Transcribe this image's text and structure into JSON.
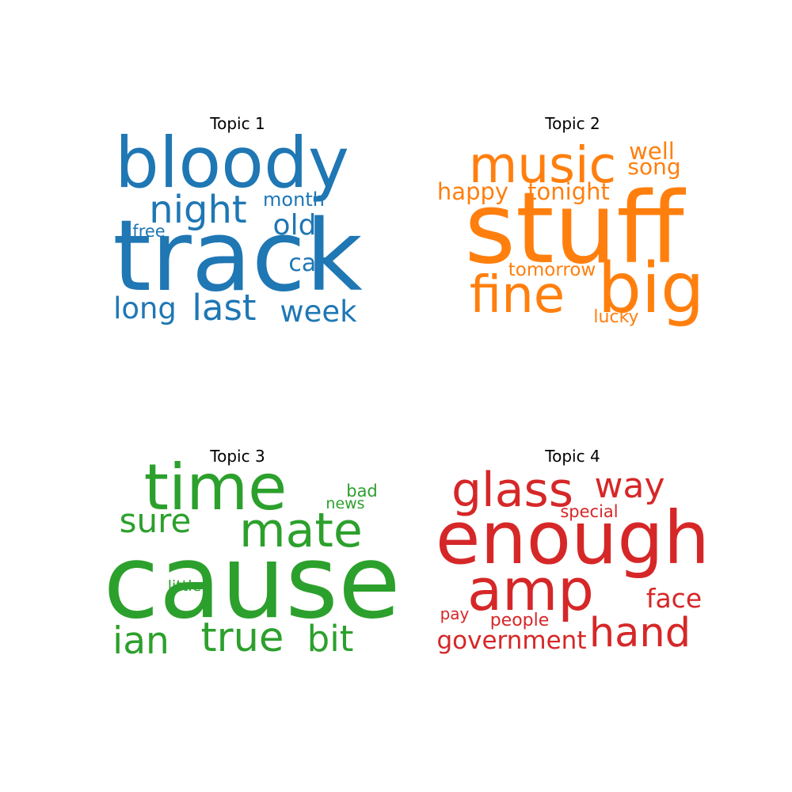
{
  "chart_data": {
    "type": "wordcloud",
    "panels": [
      {
        "title": "Topic 1",
        "color": "#1f77b4",
        "words": [
          {
            "text": "bloody",
            "weight": 1.0
          },
          {
            "text": "track",
            "weight": 1.0
          },
          {
            "text": "night",
            "weight": 0.48
          },
          {
            "text": "last",
            "weight": 0.47
          },
          {
            "text": "week",
            "weight": 0.37
          },
          {
            "text": "long",
            "weight": 0.37
          },
          {
            "text": "old",
            "weight": 0.36
          },
          {
            "text": "car",
            "weight": 0.3
          },
          {
            "text": "month",
            "weight": 0.24
          },
          {
            "text": "free",
            "weight": 0.21
          }
        ]
      },
      {
        "title": "Topic 2",
        "color": "#ff7f0e",
        "words": [
          {
            "text": "stuff",
            "weight": 1.0
          },
          {
            "text": "big",
            "weight": 0.72
          },
          {
            "text": "fine",
            "weight": 0.66
          },
          {
            "text": "music",
            "weight": 0.65
          },
          {
            "text": "tonight",
            "weight": 0.3
          },
          {
            "text": "happy",
            "weight": 0.29
          },
          {
            "text": "well",
            "weight": 0.29
          },
          {
            "text": "song",
            "weight": 0.27
          },
          {
            "text": "tomorrow",
            "weight": 0.24
          },
          {
            "text": "lucky",
            "weight": 0.23
          }
        ]
      },
      {
        "title": "Topic 3",
        "color": "#2ca02c",
        "words": [
          {
            "text": "time",
            "weight": 1.0
          },
          {
            "text": "cause",
            "weight": 0.76
          },
          {
            "text": "mate",
            "weight": 0.55
          },
          {
            "text": "true",
            "weight": 0.48
          },
          {
            "text": "bit",
            "weight": 0.42
          },
          {
            "text": "ian",
            "weight": 0.42
          },
          {
            "text": "sure",
            "weight": 0.39
          },
          {
            "text": "bad",
            "weight": 0.19
          },
          {
            "text": "news",
            "weight": 0.18
          },
          {
            "text": "little",
            "weight": 0.18
          }
        ]
      },
      {
        "title": "Topic 4",
        "color": "#d62728",
        "words": [
          {
            "text": "enough",
            "weight": 1.0
          },
          {
            "text": "amp",
            "weight": 0.78
          },
          {
            "text": "glass",
            "weight": 0.55
          },
          {
            "text": "hand",
            "weight": 0.48
          },
          {
            "text": "way",
            "weight": 0.46
          },
          {
            "text": "face",
            "weight": 0.34
          },
          {
            "text": "government",
            "weight": 0.32
          },
          {
            "text": "people",
            "weight": 0.23
          },
          {
            "text": "special",
            "weight": 0.22
          },
          {
            "text": "pay",
            "weight": 0.21
          }
        ]
      }
    ]
  }
}
